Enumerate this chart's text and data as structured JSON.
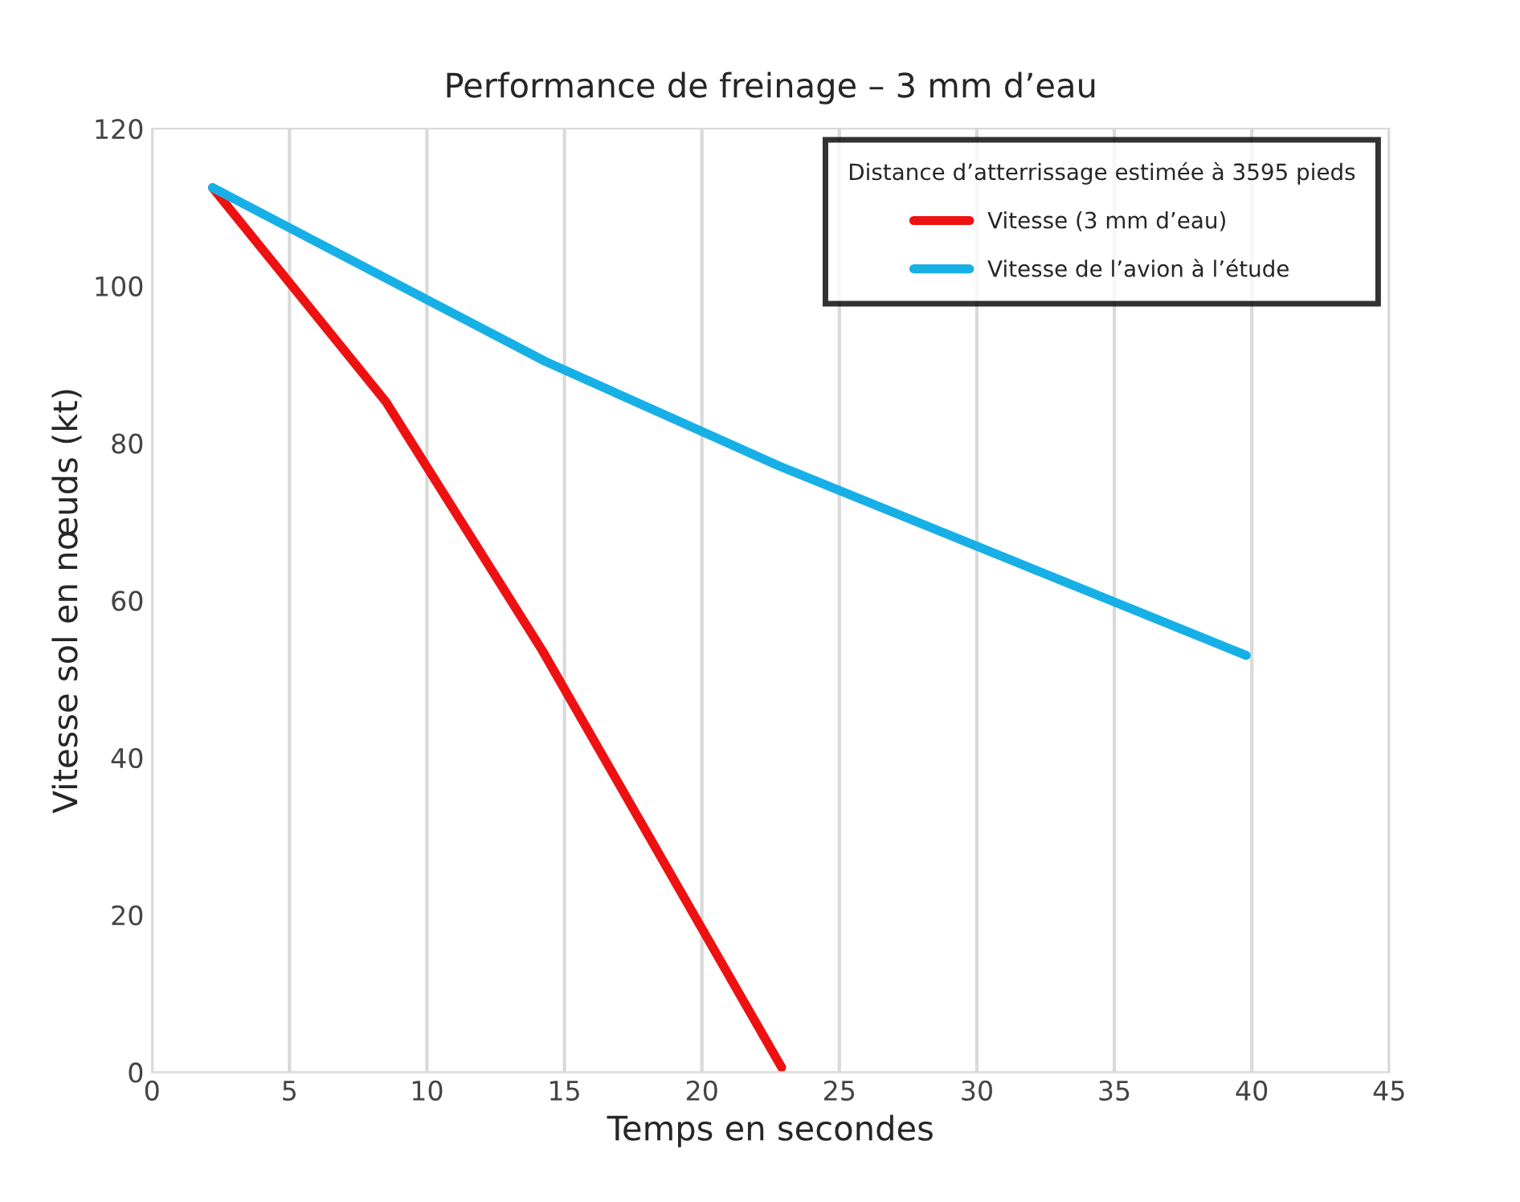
{
  "chart_data": {
    "type": "line",
    "title": "Performance de freinage – 3 mm d’eau",
    "xlabel": "Temps en secondes",
    "ylabel": "Vitesse sol en nœuds (kt)",
    "legend_title": "Distance d’atterrissage estimée à 3595 pieds",
    "series": [
      {
        "name": "Vitesse (3 mm d’eau)",
        "color": "#ee1111",
        "x": [
          2.2,
          8.5,
          14.2,
          22.9
        ],
        "values": [
          112.5,
          85.3,
          53.6,
          0.6
        ]
      },
      {
        "name": "Vitesse de l’avion à l’étude",
        "color": "#17b0e6",
        "x": [
          2.2,
          14.3,
          22.8,
          39.8
        ],
        "values": [
          112.5,
          90.4,
          77.1,
          53
        ]
      }
    ],
    "xlim": [
      0,
      45
    ],
    "xticks": [
      0,
      5,
      10,
      15,
      20,
      25,
      30,
      35,
      40,
      45
    ],
    "ylim": [
      0,
      120
    ],
    "yticks": [
      0,
      20,
      40,
      60,
      80,
      100,
      120
    ],
    "grid": "x",
    "legend": "top right",
    "marker": "none",
    "line_style": "solid"
  }
}
